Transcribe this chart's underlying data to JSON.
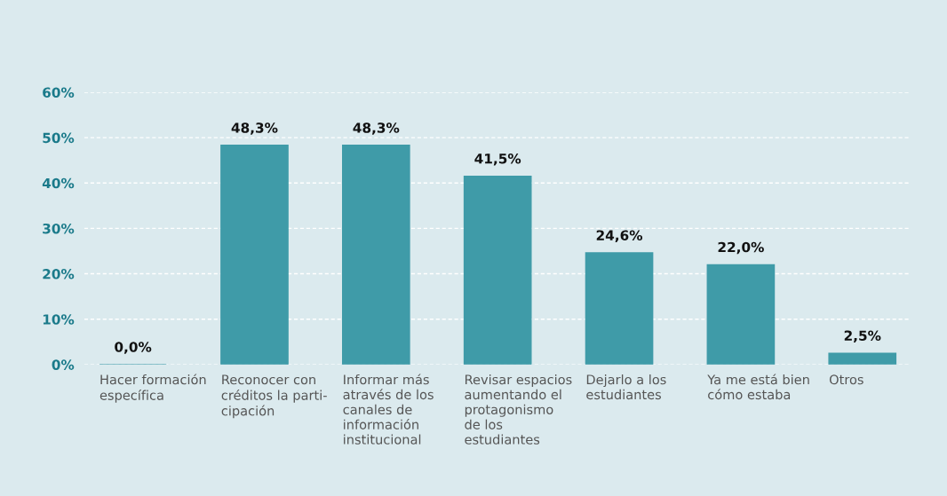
{
  "chart_data": {
    "type": "bar",
    "categories": [
      "Hacer formación\nespecífica",
      "Reconocer con\ncréditos la parti-\ncipación",
      "Informar más\natravés de los\ncanales de\ninformación\ninstitucional",
      "Revisar espacios\naumentando el\nprotagonismo\nde los\nestudiantes",
      "Dejarlo a los\nestudiantes",
      "Ya me está bien\ncómo estaba",
      "Otros"
    ],
    "values": [
      0.0,
      48.3,
      48.3,
      41.5,
      24.6,
      22.0,
      2.5
    ],
    "value_labels": [
      "0,0%",
      "48,3%",
      "48,3%",
      "41,5%",
      "24,6%",
      "22,0%",
      "2,5%"
    ],
    "color": "#3f9ba8",
    "ylim": [
      0,
      60
    ],
    "yticks": [
      {
        "value": 0,
        "label": "0%"
      },
      {
        "value": 10,
        "label": "10%"
      },
      {
        "value": 20,
        "label": "20%"
      },
      {
        "value": 30,
        "label": "30%"
      },
      {
        "value": 40,
        "label": "40%"
      },
      {
        "value": 50,
        "label": "50%"
      },
      {
        "value": 60,
        "label": "60%"
      }
    ],
    "grid": "y"
  }
}
